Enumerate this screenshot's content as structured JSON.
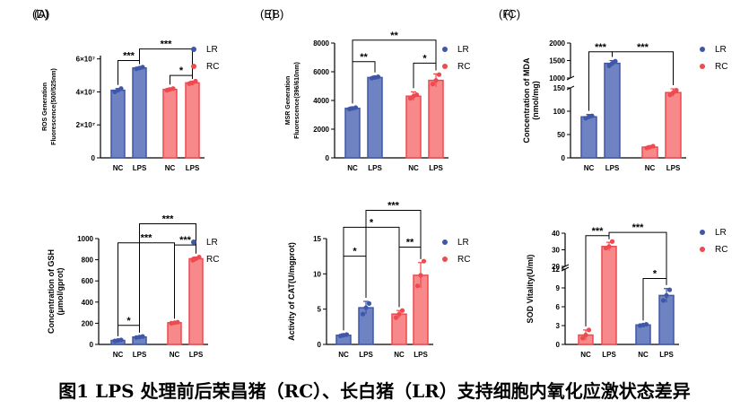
{
  "caption": "图1 LPS 处理前后荣昌猪（RC）、长白猪（LR）支持细胞内氧化应激状态差异",
  "colors": {
    "LR": "#3f57a8",
    "RC": "#ee4a4f",
    "LR_fill": "#6f82c2",
    "RC_fill": "#f7898b"
  },
  "chart_data": [
    {
      "panel": "(A)",
      "type": "bar",
      "ylabel": [
        "ROS Generation",
        "Fluorescence(500/525nm)"
      ],
      "yscale": 10000000,
      "ylim": [
        0,
        6.2
      ],
      "ticks": [
        0,
        2,
        4,
        6
      ],
      "tick_labels": [
        "0",
        "2×10⁷",
        "4×10⁷",
        "6×10⁷"
      ],
      "categories": [
        "NC",
        "LPS",
        "NC",
        "LPS"
      ],
      "groups": [
        "LR",
        "LR",
        "RC",
        "RC"
      ],
      "values": [
        4.1,
        5.45,
        4.15,
        4.55
      ],
      "errors": [
        0.1,
        0.05,
        0.08,
        0.1
      ],
      "points": [
        [
          4.0,
          4.1,
          4.2
        ],
        [
          5.4,
          5.45,
          5.5
        ],
        [
          4.1,
          4.15,
          4.2
        ],
        [
          4.5,
          4.55,
          4.65
        ]
      ],
      "sig": [
        {
          "bars": [
            0,
            1
          ],
          "level": 5.9,
          "label": "***"
        },
        {
          "bars": [
            2,
            3
          ],
          "level": 5.0,
          "label": "*"
        },
        {
          "bars": [
            1,
            3
          ],
          "level": 6.6,
          "label": "***"
        }
      ],
      "legend": [
        "LR",
        "RC"
      ]
    },
    {
      "panel": "(B)",
      "type": "bar",
      "ylabel": [
        "MSR Generation",
        "Fluorescence(396/610nm)"
      ],
      "ylim": [
        0,
        8000
      ],
      "ticks": [
        0,
        2000,
        4000,
        6000,
        8000
      ],
      "tick_labels": [
        "0",
        "2000",
        "4000",
        "6000",
        "8000"
      ],
      "categories": [
        "NC",
        "LPS",
        "NC",
        "LPS"
      ],
      "groups": [
        "LR",
        "LR",
        "RC",
        "RC"
      ],
      "values": [
        3450,
        5600,
        4300,
        5400
      ],
      "errors": [
        100,
        100,
        300,
        450
      ],
      "points": [
        [
          3400,
          3450,
          3500
        ],
        [
          5550,
          5600,
          5650
        ],
        [
          4150,
          4300,
          4400
        ],
        [
          5150,
          5400,
          5800
        ]
      ],
      "sig": [
        {
          "bars": [
            0,
            1
          ],
          "level": 6700,
          "label": "**"
        },
        {
          "bars": [
            2,
            3
          ],
          "level": 6600,
          "label": "*"
        },
        {
          "bars": [
            0,
            3
          ],
          "level": 8200,
          "label": "**"
        }
      ],
      "legend": [
        "LR",
        "RC"
      ]
    },
    {
      "panel": "(C)",
      "type": "bar",
      "ylabel": [
        "Concentration of MDA",
        "(nmol/mg)"
      ],
      "broken": true,
      "lower": {
        "ylim": [
          0,
          150
        ],
        "ticks": [
          0,
          50,
          100,
          150
        ],
        "tick_labels": [
          "0",
          "50",
          "100",
          "150"
        ]
      },
      "upper": {
        "ylim": [
          1000,
          2000
        ],
        "ticks": [
          1000,
          1500,
          2000
        ],
        "tick_labels": [
          "1000",
          "1500",
          "2000"
        ]
      },
      "categories": [
        "NC",
        "LPS",
        "NC",
        "LPS"
      ],
      "groups": [
        "LR",
        "LR",
        "RC",
        "RC"
      ],
      "values": [
        88,
        1420,
        23,
        140
      ],
      "errors": [
        5,
        80,
        3,
        8
      ],
      "points": [
        [
          85,
          88,
          90
        ],
        [
          1350,
          1420,
          1480
        ],
        [
          21,
          23,
          25
        ],
        [
          135,
          140,
          145
        ]
      ],
      "sig": [
        {
          "bars": [
            0,
            1
          ],
          "level": 1750,
          "label": "***"
        },
        {
          "bars": [
            1,
            3
          ],
          "level": 1750,
          "label": "***"
        }
      ],
      "legend": [
        "LR",
        "RC"
      ]
    },
    {
      "panel": "(D)",
      "type": "bar",
      "ylabel": [
        "Concentration of GSH",
        "(μmol/gprot)"
      ],
      "ylim": [
        0,
        1000
      ],
      "ticks": [
        0,
        200,
        400,
        600,
        800,
        1000
      ],
      "tick_labels": [
        "0",
        "200",
        "400",
        "600",
        "800",
        "1000"
      ],
      "categories": [
        "NC",
        "LPS",
        "NC",
        "LPS"
      ],
      "groups": [
        "LR",
        "LR",
        "RC",
        "RC"
      ],
      "values": [
        38,
        70,
        205,
        810
      ],
      "errors": [
        6,
        8,
        5,
        15
      ],
      "points": [
        [
          33,
          38,
          43
        ],
        [
          65,
          70,
          75
        ],
        [
          200,
          205,
          210
        ],
        [
          795,
          810,
          825
        ]
      ],
      "sig": [
        {
          "bars": [
            0,
            1
          ],
          "level": 180,
          "label": "*"
        },
        {
          "bars": [
            2,
            3
          ],
          "level": 940,
          "label": "***"
        },
        {
          "bars": [
            0,
            2
          ],
          "level": 960,
          "label": "***"
        },
        {
          "bars": [
            1,
            3
          ],
          "level": 1140,
          "label": "***"
        }
      ],
      "legend": [
        "LR",
        "RC"
      ]
    },
    {
      "panel": "(E)",
      "type": "bar",
      "ylabel": [
        "Activity of CAT(U/mgprot)"
      ],
      "ylim": [
        0,
        15
      ],
      "ticks": [
        0,
        5,
        10,
        15
      ],
      "tick_labels": [
        "0",
        "5",
        "10",
        "15"
      ],
      "categories": [
        "NC",
        "LPS",
        "NC",
        "LPS"
      ],
      "groups": [
        "LR",
        "LR",
        "RC",
        "RC"
      ],
      "values": [
        1.3,
        5.2,
        4.3,
        9.8
      ],
      "errors": [
        0.2,
        0.9,
        0.5,
        1.8
      ],
      "points": [
        [
          1.2,
          1.3,
          1.4
        ],
        [
          4.3,
          5.2,
          5.8
        ],
        [
          3.8,
          4.3,
          4.8
        ],
        [
          8.3,
          9.8,
          11.8
        ]
      ],
      "sig": [
        {
          "bars": [
            0,
            1
          ],
          "level": 12.5,
          "label": "*"
        },
        {
          "bars": [
            2,
            3
          ],
          "level": 13.8,
          "label": "**"
        },
        {
          "bars": [
            0,
            2
          ],
          "level": 16.6,
          "label": "*"
        },
        {
          "bars": [
            1,
            3
          ],
          "level": 19.0,
          "label": "***"
        }
      ],
      "legend": [
        "LR",
        "RC"
      ]
    },
    {
      "panel": "(F)",
      "type": "bar",
      "ylabel": [
        "SOD Vitality(U/ml)"
      ],
      "broken": true,
      "lower": {
        "ylim": [
          0,
          12
        ],
        "ticks": [
          0,
          3,
          6,
          9,
          12
        ],
        "tick_labels": [
          "0",
          "3",
          "6",
          "9",
          "12"
        ]
      },
      "upper": {
        "ylim": [
          20,
          40
        ],
        "ticks": [
          20,
          30,
          40
        ],
        "tick_labels": [
          "20",
          "30",
          "40"
        ]
      },
      "categories": [
        "NC",
        "LPS",
        "NC",
        "LPS"
      ],
      "groups": [
        "RC",
        "RC",
        "LR",
        "LR"
      ],
      "values": [
        1.5,
        32,
        3.1,
        7.8
      ],
      "errors": [
        0.8,
        2.5,
        0.15,
        1.1
      ],
      "points": [
        [
          1.0,
          1.5,
          2.3
        ],
        [
          31,
          32,
          35
        ],
        [
          3.0,
          3.1,
          3.2
        ],
        [
          7.0,
          7.8,
          8.7
        ]
      ],
      "sig": [
        {
          "bars": [
            0,
            1
          ],
          "level": 38.5,
          "label": "***"
        },
        {
          "bars": [
            2,
            3
          ],
          "level": 10.5,
          "label": "*"
        },
        {
          "bars": [
            1,
            3
          ],
          "level": 40.5,
          "label": "***"
        }
      ],
      "legend": [
        "LR",
        "RC"
      ]
    }
  ]
}
